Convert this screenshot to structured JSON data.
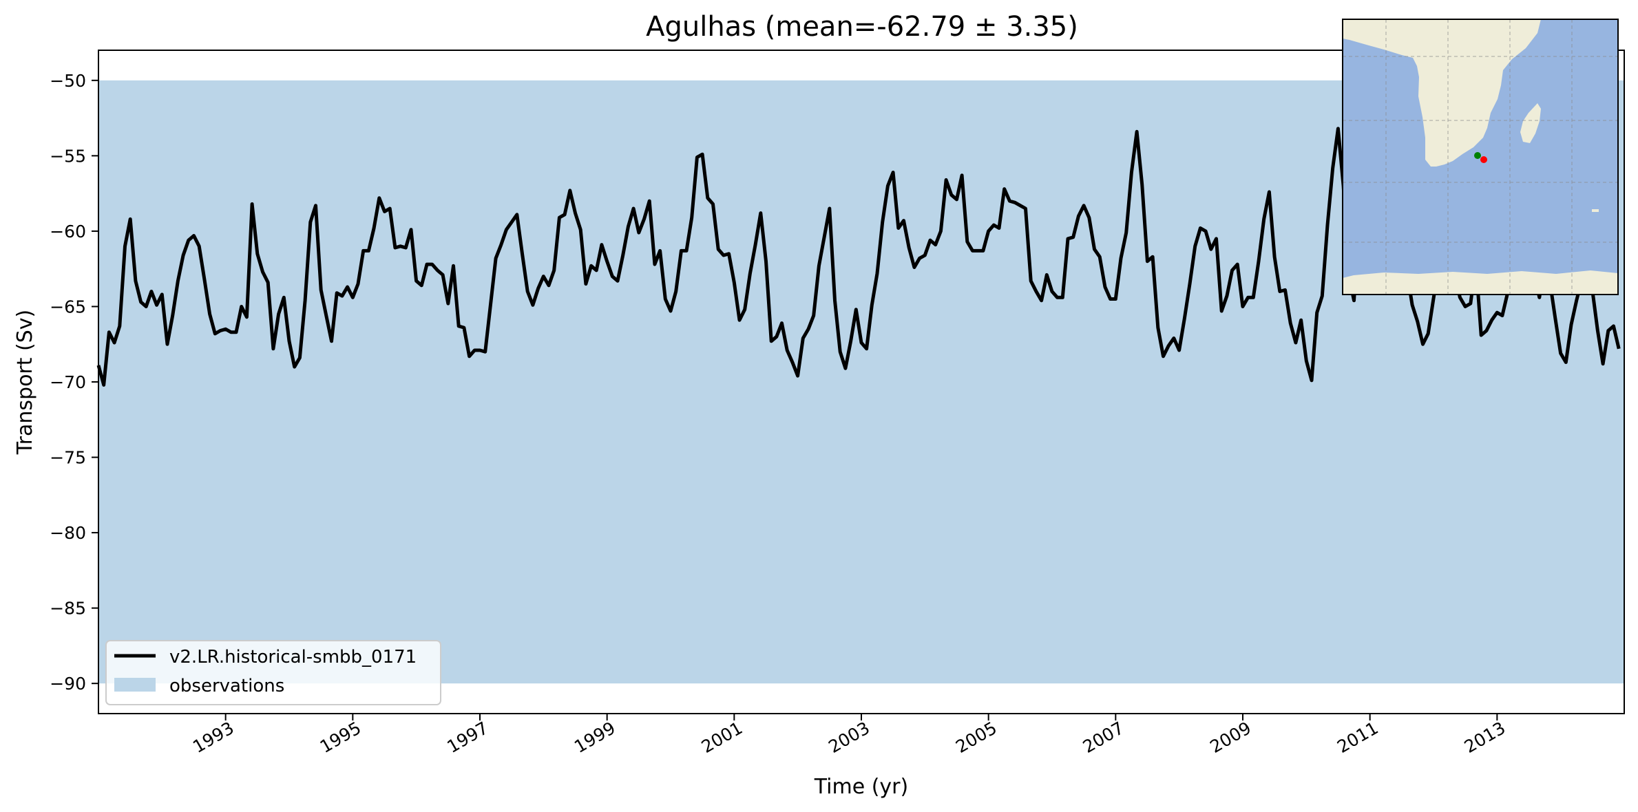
{
  "chart_data": {
    "type": "line",
    "title": "Agulhas (mean=-62.79 ± 3.35)",
    "xlabel": "Time (yr)",
    "ylabel": "Transport (Sv)",
    "xlim": [
      1991.0,
      2015.0
    ],
    "ylim": [
      -92.0,
      -48.0
    ],
    "x_ticks": [
      "1993",
      "1995",
      "1997",
      "1999",
      "2001",
      "2003",
      "2005",
      "2007",
      "2009",
      "2011",
      "2013"
    ],
    "y_ticks": [
      "−50",
      "−55",
      "−60",
      "−65",
      "−70",
      "−75",
      "−80",
      "−85",
      "−90"
    ],
    "grid": false,
    "legend_position": "lower-left",
    "observations": {
      "name": "observations",
      "range": [
        -90,
        -50
      ],
      "color": "#bbd5e8"
    },
    "series": [
      {
        "name": "v2.LR.historical-smbb_0171",
        "color": "#000000",
        "x_start": 1991.0,
        "x_step": 0.08333,
        "values": [
          -68.9,
          -70.2,
          -66.7,
          -67.4,
          -66.3,
          -61.0,
          -59.2,
          -63.3,
          -64.7,
          -65.0,
          -64.0,
          -64.9,
          -64.2,
          -67.5,
          -65.6,
          -63.3,
          -61.6,
          -60.6,
          -60.3,
          -61.0,
          -63.2,
          -65.5,
          -66.8,
          -66.6,
          -66.5,
          -66.7,
          -66.7,
          -65.0,
          -65.7,
          -58.2,
          -61.5,
          -62.7,
          -63.4,
          -67.8,
          -65.5,
          -64.4,
          -67.3,
          -69.0,
          -68.4,
          -64.6,
          -59.4,
          -58.3,
          -63.9,
          -65.6,
          -67.3,
          -64.1,
          -64.3,
          -63.7,
          -64.4,
          -63.5,
          -61.3,
          -61.3,
          -59.8,
          -57.8,
          -58.7,
          -58.5,
          -61.1,
          -61.0,
          -61.1,
          -59.9,
          -63.3,
          -63.6,
          -62.2,
          -62.2,
          -62.6,
          -62.9,
          -64.8,
          -62.3,
          -66.3,
          -66.4,
          -68.3,
          -67.9,
          -67.9,
          -68.0,
          -64.9,
          -61.8,
          -60.9,
          -59.9,
          -59.4,
          -58.9,
          -61.5,
          -64.0,
          -64.9,
          -63.8,
          -63.0,
          -63.6,
          -62.6,
          -59.1,
          -58.9,
          -57.3,
          -58.8,
          -59.9,
          -63.5,
          -62.3,
          -62.6,
          -60.9,
          -62.0,
          -63.0,
          -63.3,
          -61.6,
          -59.7,
          -58.5,
          -60.1,
          -59.2,
          -58.0,
          -62.2,
          -61.3,
          -64.5,
          -65.3,
          -64.0,
          -61.3,
          -61.3,
          -59.1,
          -55.1,
          -54.9,
          -57.8,
          -58.2,
          -61.2,
          -61.6,
          -61.5,
          -63.4,
          -65.9,
          -65.2,
          -62.8,
          -60.9,
          -58.8,
          -62.0,
          -67.3,
          -67.0,
          -66.1,
          -67.9,
          -68.7,
          -69.6,
          -67.1,
          -66.5,
          -65.6,
          -62.3,
          -60.4,
          -58.5,
          -64.6,
          -68.0,
          -69.1,
          -67.3,
          -65.2,
          -67.4,
          -67.8,
          -64.9,
          -62.8,
          -59.4,
          -57.0,
          -56.1,
          -59.8,
          -59.3,
          -61.1,
          -62.4,
          -61.8,
          -61.6,
          -60.6,
          -60.9,
          -60.0,
          -56.6,
          -57.6,
          -57.9,
          -56.3,
          -60.7,
          -61.3,
          -61.3,
          -61.3,
          -60.0,
          -59.6,
          -59.8,
          -57.2,
          -58.0,
          -58.1,
          -58.3,
          -58.5,
          -63.3,
          -64.0,
          -64.6,
          -62.9,
          -64.0,
          -64.4,
          -64.4,
          -60.5,
          -60.4,
          -59.0,
          -58.3,
          -59.1,
          -61.2,
          -61.7,
          -63.7,
          -64.5,
          -64.5,
          -61.8,
          -60.1,
          -56.1,
          -53.4,
          -56.9,
          -62.0,
          -61.7,
          -66.4,
          -68.3,
          -67.6,
          -67.1,
          -67.9,
          -65.8,
          -63.5,
          -61.0,
          -59.8,
          -60.0,
          -61.2,
          -60.5,
          -65.3,
          -64.3,
          -62.6,
          -62.2,
          -65.0,
          -64.4,
          -64.4,
          -62.0,
          -59.2,
          -57.4,
          -61.7,
          -64.0,
          -63.9,
          -66.1,
          -67.4,
          -65.9,
          -68.6,
          -69.9,
          -65.4,
          -64.3,
          -59.6,
          -55.8,
          -53.2,
          -57.0,
          -62.9,
          -64.6,
          -59.2,
          -57.3,
          -57.8,
          -57.6,
          -58.7,
          -59.5,
          -59.6,
          -59.4,
          -61.8,
          -62.7,
          -64.9,
          -66.0,
          -67.5,
          -66.8,
          -64.5,
          -62.3,
          -61.5,
          -61.0,
          -62.8,
          -64.4,
          -65.0,
          -64.8,
          -62.1,
          -66.9,
          -66.6,
          -65.9,
          -65.4,
          -65.6,
          -64.1,
          -62.1,
          -60.9,
          -61.6,
          -62.3,
          -62.8,
          -64.4,
          -62.1,
          -63.4,
          -65.8,
          -68.1,
          -68.7,
          -66.2,
          -64.6,
          -63.2,
          -62.8,
          -63.9,
          -66.6,
          -68.8,
          -66.6,
          -66.3,
          -67.8
        ]
      }
    ]
  },
  "inset_map": {
    "description_icon": "southern-africa-map-icon",
    "ocean_color": "#97b5e0",
    "land_color": "#efedd9",
    "markers": [
      {
        "name": "green-marker",
        "color": "#008000"
      },
      {
        "name": "red-marker",
        "color": "#ff0000"
      }
    ]
  }
}
